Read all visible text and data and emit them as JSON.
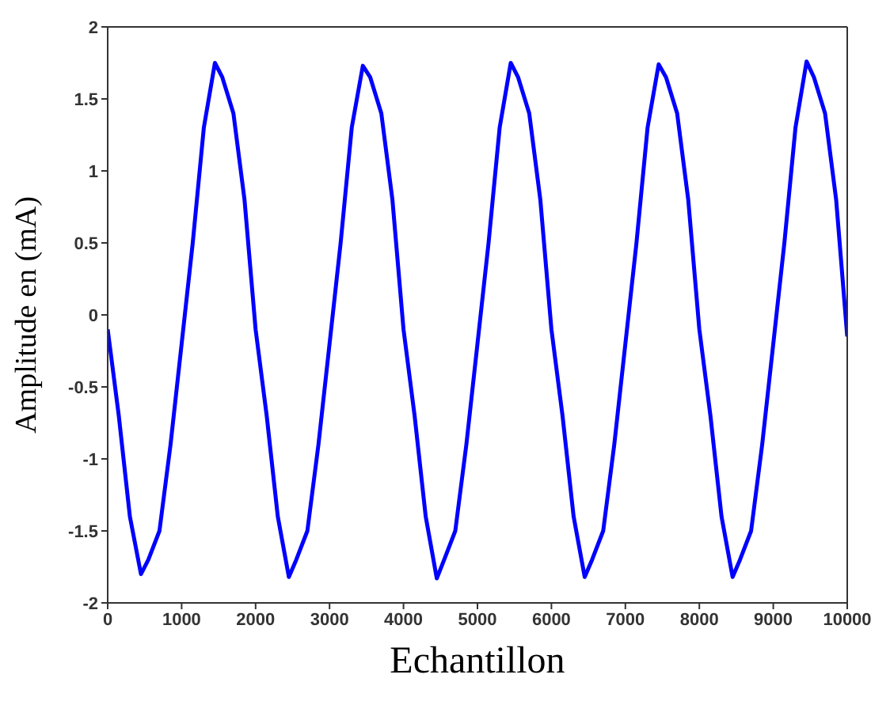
{
  "chart_data": {
    "type": "line",
    "xlabel": "Echantillon",
    "ylabel": "Amplitude en (mA)",
    "xlim": [
      0,
      10000
    ],
    "ylim": [
      -2,
      2
    ],
    "xticks": [
      0,
      1000,
      2000,
      3000,
      4000,
      5000,
      6000,
      7000,
      8000,
      9000,
      10000
    ],
    "yticks": [
      -2,
      -1.5,
      -1,
      -0.5,
      0,
      0.5,
      1,
      1.5,
      2
    ],
    "grid": false,
    "legend": false,
    "marker": "none",
    "line_style": "solid",
    "x": [
      0,
      150,
      300,
      450,
      550,
      700,
      850,
      1000,
      1150,
      1300,
      1450,
      1550,
      1700,
      1850,
      2000,
      2150,
      2300,
      2450,
      2550,
      2700,
      2850,
      3000,
      3150,
      3300,
      3450,
      3550,
      3700,
      3850,
      4000,
      4150,
      4300,
      4450,
      4550,
      4700,
      4850,
      5000,
      5150,
      5300,
      5450,
      5550,
      5700,
      5850,
      6000,
      6150,
      6300,
      6450,
      6550,
      6700,
      6850,
      7000,
      7150,
      7300,
      7450,
      7550,
      7700,
      7850,
      8000,
      8150,
      8300,
      8450,
      8550,
      8700,
      8850,
      9000,
      9150,
      9300,
      9450,
      9550,
      9700,
      9850,
      10000
    ],
    "series": [
      {
        "color": "#0000ff",
        "values": [
          -0.1,
          -0.7,
          -1.4,
          -1.8,
          -1.7,
          -1.5,
          -0.9,
          -0.2,
          0.5,
          1.3,
          1.75,
          1.65,
          1.4,
          0.8,
          -0.1,
          -0.7,
          -1.4,
          -1.82,
          -1.7,
          -1.5,
          -0.9,
          -0.2,
          0.5,
          1.3,
          1.73,
          1.65,
          1.4,
          0.8,
          -0.1,
          -0.7,
          -1.4,
          -1.83,
          -1.7,
          -1.5,
          -0.9,
          -0.2,
          0.5,
          1.3,
          1.75,
          1.65,
          1.4,
          0.8,
          -0.1,
          -0.7,
          -1.4,
          -1.82,
          -1.7,
          -1.5,
          -0.9,
          -0.2,
          0.5,
          1.3,
          1.74,
          1.65,
          1.4,
          0.8,
          -0.1,
          -0.7,
          -1.4,
          -1.82,
          -1.7,
          -1.5,
          -0.9,
          -0.2,
          0.5,
          1.3,
          1.76,
          1.65,
          1.4,
          0.8,
          -0.15
        ]
      }
    ]
  }
}
